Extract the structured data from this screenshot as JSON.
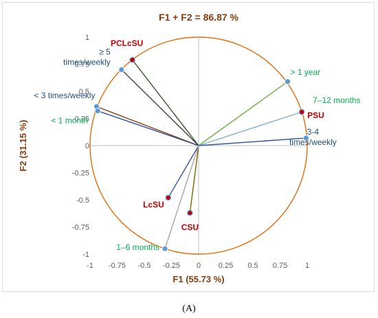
{
  "chart_data": {
    "type": "scatter",
    "subtype": "correlation-circle",
    "title": "F1 + F2 = 86.87 %",
    "xlabel": "F1 (55.73 %)",
    "ylabel": "F2 (31.15 %)",
    "xlim": [
      -1,
      1
    ],
    "ylim": [
      -1,
      1
    ],
    "x_ticks": [
      "-1",
      "-0.75",
      "-0.5",
      "-0.25",
      "0",
      "0.25",
      "0.5",
      "0.75",
      "1"
    ],
    "y_ticks": [
      "-1",
      "-0.75",
      "-0.5",
      "-0.25",
      "0",
      "0.25",
      "0.5",
      "0.75",
      "1"
    ],
    "grid": false,
    "circle_color": "#e46c0a",
    "axis_color": "#bfbfbf",
    "vectors": [
      {
        "label": "PCLcSU",
        "x": -0.61,
        "y": 0.79,
        "group": "substance",
        "label_color": "#c00000",
        "marker_color": "#c00000",
        "line_color": "#375623"
      },
      {
        "label": "≥ 5\ntimes/weekly",
        "x": -0.71,
        "y": 0.7,
        "group": "frequency",
        "label_color": "#1f4e79",
        "marker_color": "#5b9bd5",
        "line_color": "#404040"
      },
      {
        "label": "< 3 times/weekly",
        "x": -0.94,
        "y": 0.36,
        "group": "frequency",
        "label_color": "#1f4e79",
        "marker_color": "#5b9bd5",
        "line_color": "#843c0c"
      },
      {
        "label": "< 1 month",
        "x": -0.93,
        "y": 0.32,
        "group": "duration",
        "label_color": "#00b050",
        "marker_color": "#5b9bd5",
        "line_color": "#2f5597"
      },
      {
        "label": "> 1 year",
        "x": 0.82,
        "y": 0.59,
        "group": "duration",
        "label_color": "#00b050",
        "marker_color": "#5b9bd5",
        "line_color": "#70ad47"
      },
      {
        "label": "7–12 months",
        "x": 0.95,
        "y": 0.31,
        "group": "duration",
        "label_color": "#00b050",
        "marker_color": "#5b9bd5",
        "line_color": "#8eb4cf"
      },
      {
        "label": "PSU",
        "x": 0.95,
        "y": 0.31,
        "group": "substance",
        "label_color": "#c00000",
        "marker_color": "#c00000",
        "line_color": "#8eb4cf"
      },
      {
        "label": "3-4\ntimes/weekly",
        "x": 0.99,
        "y": 0.07,
        "group": "frequency",
        "label_color": "#1f4e79",
        "marker_color": "#5b9bd5",
        "line_color": "#2f5597"
      },
      {
        "label": "LcSU",
        "x": -0.28,
        "y": -0.48,
        "group": "substance",
        "label_color": "#c00000",
        "marker_color": "#c00000",
        "line_color": "#2f5597"
      },
      {
        "label": "CSU",
        "x": -0.08,
        "y": -0.62,
        "group": "substance",
        "label_color": "#c00000",
        "marker_color": "#c00000",
        "line_color": "#7f6000"
      },
      {
        "label": "1–6 months",
        "x": -0.31,
        "y": -0.95,
        "group": "duration",
        "label_color": "#00b050",
        "marker_color": "#5b9bd5",
        "line_color": "#a6a6a6"
      }
    ]
  },
  "caption": "(A)"
}
